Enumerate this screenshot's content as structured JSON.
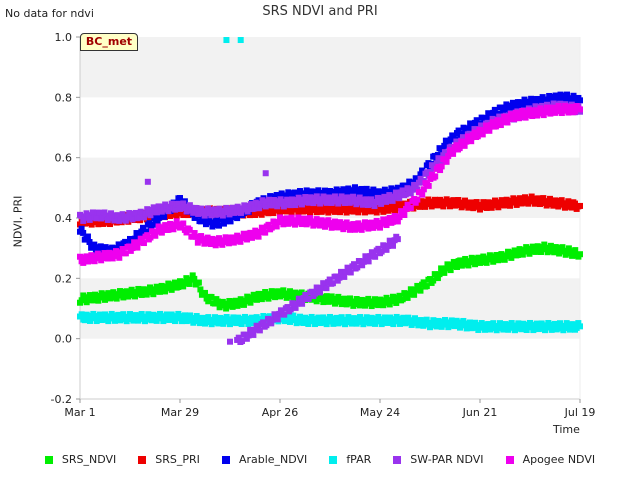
{
  "header": {
    "title": "SRS NDVI and PRI",
    "no_data_note": "No data for ndvi",
    "site_badge": "BC_met"
  },
  "chart_data": {
    "type": "scatter",
    "title": "SRS NDVI and PRI",
    "xlabel": "Time",
    "ylabel": "NDVI, PRI",
    "x_type": "date",
    "xlim": [
      "Mar 1",
      "Jul 19"
    ],
    "ylim": [
      -0.2,
      1.0
    ],
    "x_ticks": [
      "Mar 1",
      "Mar 29",
      "Apr 26",
      "May 24",
      "Jun 21",
      "Jul 19"
    ],
    "y_ticks": [
      "-0.2",
      "0.0",
      "0.2",
      "0.4",
      "0.6",
      "0.8",
      "1.0"
    ],
    "grid": "horizontal alternating bands",
    "legend_position": "bottom",
    "series": [
      {
        "name": "SRS_NDVI",
        "color": "#00ee00",
        "points": [
          [
            "Mar 1",
            0.13
          ],
          [
            "Mar 8",
            0.14
          ],
          [
            "Mar 15",
            0.15
          ],
          [
            "Mar 22",
            0.16
          ],
          [
            "Mar 29",
            0.18
          ],
          [
            "Apr 2",
            0.2
          ],
          [
            "Apr 5",
            0.14
          ],
          [
            "Apr 10",
            0.11
          ],
          [
            "Apr 15",
            0.12
          ],
          [
            "Apr 20",
            0.14
          ],
          [
            "Apr 26",
            0.15
          ],
          [
            "May 3",
            0.14
          ],
          [
            "May 10",
            0.13
          ],
          [
            "May 17",
            0.12
          ],
          [
            "May 24",
            0.12
          ],
          [
            "May 29",
            0.13
          ],
          [
            "Jun 3",
            0.16
          ],
          [
            "Jun 7",
            0.19
          ],
          [
            "Jun 11",
            0.23
          ],
          [
            "Jun 15",
            0.25
          ],
          [
            "Jun 21",
            0.26
          ],
          [
            "Jun 27",
            0.27
          ],
          [
            "Jul 3",
            0.29
          ],
          [
            "Jul 9",
            0.3
          ],
          [
            "Jul 15",
            0.29
          ],
          [
            "Jul 19",
            0.28
          ]
        ]
      },
      {
        "name": "SRS_PRI",
        "color": "#ee0000",
        "points": [
          [
            "Mar 1",
            0.39
          ],
          [
            "Mar 8",
            0.39
          ],
          [
            "Mar 15",
            0.4
          ],
          [
            "Mar 22",
            0.41
          ],
          [
            "Mar 29",
            0.42
          ],
          [
            "Apr 5",
            0.42
          ],
          [
            "Apr 12",
            0.42
          ],
          [
            "Apr 19",
            0.42
          ],
          [
            "Apr 26",
            0.43
          ],
          [
            "May 3",
            0.43
          ],
          [
            "May 10",
            0.43
          ],
          [
            "May 17",
            0.43
          ],
          [
            "May 24",
            0.43
          ],
          [
            "May 31",
            0.44
          ],
          [
            "Jun 7",
            0.45
          ],
          [
            "Jun 14",
            0.45
          ],
          [
            "Jun 21",
            0.44
          ],
          [
            "Jun 28",
            0.45
          ],
          [
            "Jul 5",
            0.46
          ],
          [
            "Jul 12",
            0.45
          ],
          [
            "Jul 19",
            0.44
          ]
        ]
      },
      {
        "name": "Arable_NDVI",
        "color": "#0000ee",
        "points": [
          [
            "Mar 1",
            0.36
          ],
          [
            "Mar 5",
            0.3
          ],
          [
            "Mar 10",
            0.29
          ],
          [
            "Mar 15",
            0.32
          ],
          [
            "Mar 20",
            0.37
          ],
          [
            "Mar 25",
            0.42
          ],
          [
            "Mar 29",
            0.46
          ],
          [
            "Apr 3",
            0.4
          ],
          [
            "Apr 8",
            0.38
          ],
          [
            "Apr 14",
            0.41
          ],
          [
            "Apr 20",
            0.45
          ],
          [
            "Apr 26",
            0.47
          ],
          [
            "May 3",
            0.48
          ],
          [
            "May 10",
            0.48
          ],
          [
            "May 17",
            0.49
          ],
          [
            "May 24",
            0.48
          ],
          [
            "May 29",
            0.49
          ],
          [
            "Jun 3",
            0.52
          ],
          [
            "Jun 7",
            0.58
          ],
          [
            "Jun 11",
            0.64
          ],
          [
            "Jun 15",
            0.68
          ],
          [
            "Jun 21",
            0.72
          ],
          [
            "Jun 27",
            0.76
          ],
          [
            "Jul 3",
            0.78
          ],
          [
            "Jul 9",
            0.79
          ],
          [
            "Jul 14",
            0.8
          ],
          [
            "Jul 19",
            0.79
          ]
        ]
      },
      {
        "name": "fPAR",
        "color": "#00eeee",
        "points": [
          [
            "Mar 1",
            0.07
          ],
          [
            "Mar 8",
            0.07
          ],
          [
            "Mar 15",
            0.07
          ],
          [
            "Mar 22",
            0.07
          ],
          [
            "Mar 29",
            0.07
          ],
          [
            "Apr 5",
            0.06
          ],
          [
            "Apr 12",
            0.06
          ],
          [
            "Apr 19",
            0.06
          ],
          [
            "Apr 26",
            0.07
          ],
          [
            "May 3",
            0.06
          ],
          [
            "May 10",
            0.06
          ],
          [
            "May 17",
            0.06
          ],
          [
            "May 24",
            0.06
          ],
          [
            "May 31",
            0.06
          ],
          [
            "Jun 7",
            0.05
          ],
          [
            "Jun 14",
            0.05
          ],
          [
            "Jun 21",
            0.04
          ],
          [
            "Jun 28",
            0.04
          ],
          [
            "Jul 5",
            0.04
          ],
          [
            "Jul 12",
            0.04
          ],
          [
            "Jul 19",
            0.04
          ],
          [
            "Apr 11",
            0.99
          ],
          [
            "Apr 15",
            0.99
          ]
        ]
      },
      {
        "name": "SW-PAR NDVI",
        "color": "#9933ee",
        "points": [
          [
            "Mar 1",
            0.4
          ],
          [
            "Mar 6",
            0.41
          ],
          [
            "Mar 12",
            0.4
          ],
          [
            "Mar 18",
            0.41
          ],
          [
            "Mar 23",
            0.43
          ],
          [
            "Mar 29",
            0.44
          ],
          [
            "Apr 4",
            0.42
          ],
          [
            "Apr 10",
            0.42
          ],
          [
            "Apr 16",
            0.43
          ],
          [
            "Apr 22",
            0.45
          ],
          [
            "Apr 28",
            0.45
          ],
          [
            "May 4",
            0.46
          ],
          [
            "May 10",
            0.46
          ],
          [
            "May 16",
            0.46
          ],
          [
            "May 22",
            0.45
          ],
          [
            "May 28",
            0.47
          ],
          [
            "Jun 3",
            0.5
          ],
          [
            "Jun 8",
            0.57
          ],
          [
            "Jun 13",
            0.63
          ],
          [
            "Jun 19",
            0.68
          ],
          [
            "Jun 25",
            0.72
          ],
          [
            "Jul 1",
            0.74
          ],
          [
            "Jul 7",
            0.76
          ],
          [
            "Jul 13",
            0.77
          ],
          [
            "Jul 19",
            0.76
          ],
          [
            "Mar 20",
            0.52
          ],
          [
            "Apr 22",
            0.56
          ],
          [
            "Apr 12",
            -0.01
          ],
          [
            "Apr 14",
            -0.01
          ],
          [
            "May 29",
            0.33
          ]
        ]
      },
      {
        "name": "Apogee NDVI",
        "color": "#ee00ee",
        "points": [
          [
            "Mar 1",
            0.26
          ],
          [
            "Mar 6",
            0.27
          ],
          [
            "Mar 12",
            0.28
          ],
          [
            "Mar 18",
            0.32
          ],
          [
            "Mar 23",
            0.36
          ],
          [
            "Mar 29",
            0.38
          ],
          [
            "Apr 3",
            0.33
          ],
          [
            "Apr 8",
            0.32
          ],
          [
            "Apr 14",
            0.33
          ],
          [
            "Apr 20",
            0.35
          ],
          [
            "Apr 26",
            0.39
          ],
          [
            "May 3",
            0.39
          ],
          [
            "May 10",
            0.38
          ],
          [
            "May 17",
            0.37
          ],
          [
            "May 24",
            0.38
          ],
          [
            "May 29",
            0.4
          ],
          [
            "Jun 3",
            0.46
          ],
          [
            "Jun 8",
            0.54
          ],
          [
            "Jun 13",
            0.62
          ],
          [
            "Jun 19",
            0.67
          ],
          [
            "Jun 25",
            0.71
          ],
          [
            "Jul 1",
            0.74
          ],
          [
            "Jul 7",
            0.75
          ],
          [
            "Jul 13",
            0.76
          ],
          [
            "Jul 19",
            0.76
          ]
        ]
      }
    ]
  }
}
